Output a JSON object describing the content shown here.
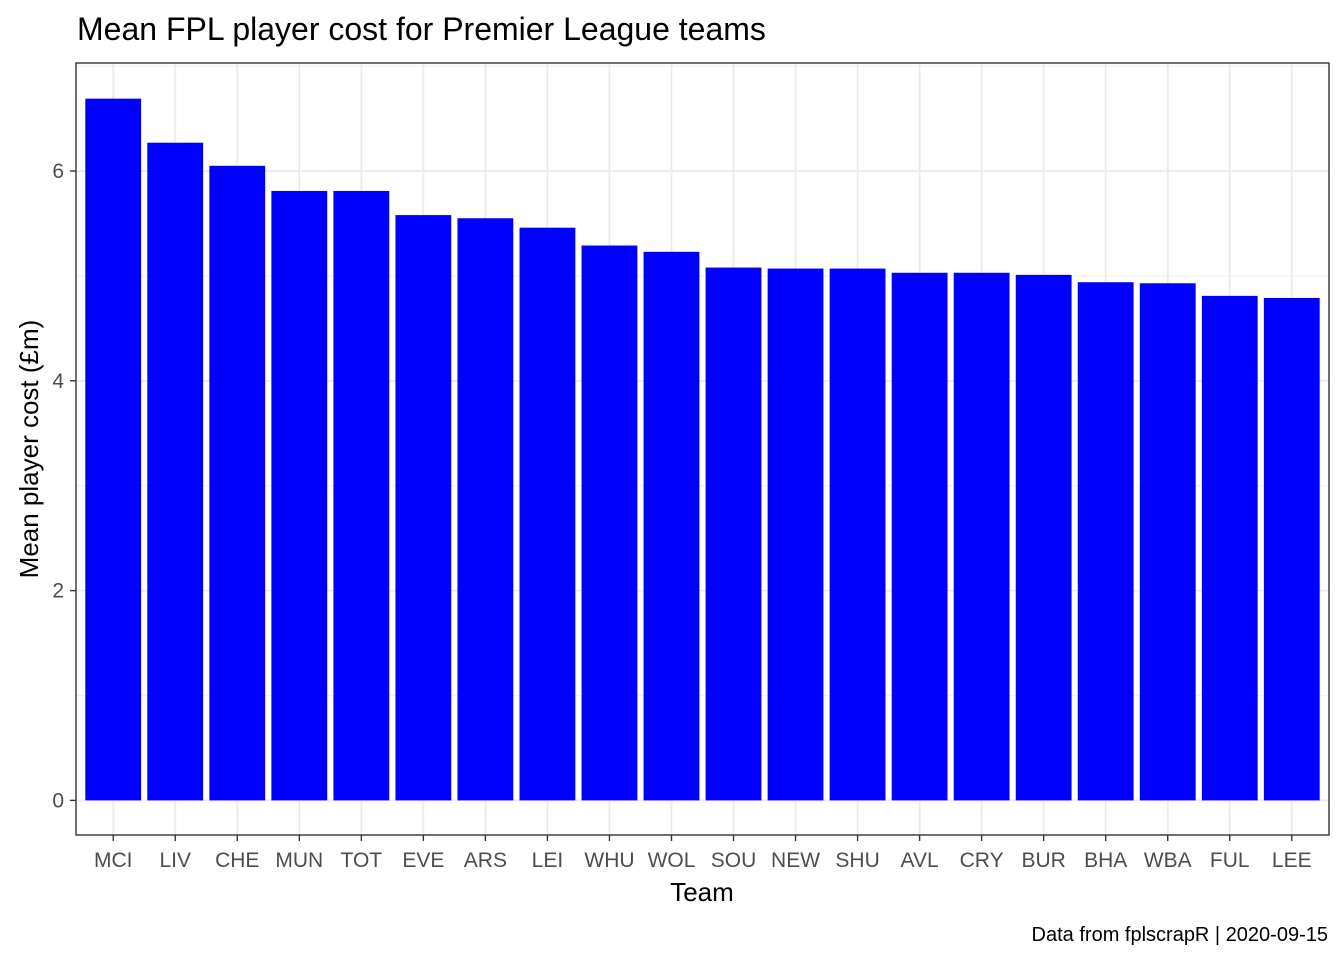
{
  "chart_data": {
    "type": "bar",
    "title": "Mean FPL player cost for Premier League teams",
    "xlabel": "Team",
    "ylabel": "Mean player cost (£m)",
    "caption": "Data from fplscrapR | 2020-09-15",
    "categories": [
      "MCI",
      "LIV",
      "CHE",
      "MUN",
      "TOT",
      "EVE",
      "ARS",
      "LEI",
      "WHU",
      "WOL",
      "SOU",
      "NEW",
      "SHU",
      "AVL",
      "CRY",
      "BUR",
      "BHA",
      "WBA",
      "FUL",
      "LEE"
    ],
    "values": [
      6.69,
      6.27,
      6.05,
      5.81,
      5.81,
      5.58,
      5.55,
      5.46,
      5.29,
      5.23,
      5.08,
      5.07,
      5.07,
      5.03,
      5.03,
      5.01,
      4.94,
      4.93,
      4.81,
      4.79
    ],
    "ylim": [
      -0.33,
      7.03
    ],
    "yticks": [
      0,
      2,
      4,
      6
    ],
    "bar_color": "#0000FF",
    "grid": true,
    "theme": "bw"
  }
}
